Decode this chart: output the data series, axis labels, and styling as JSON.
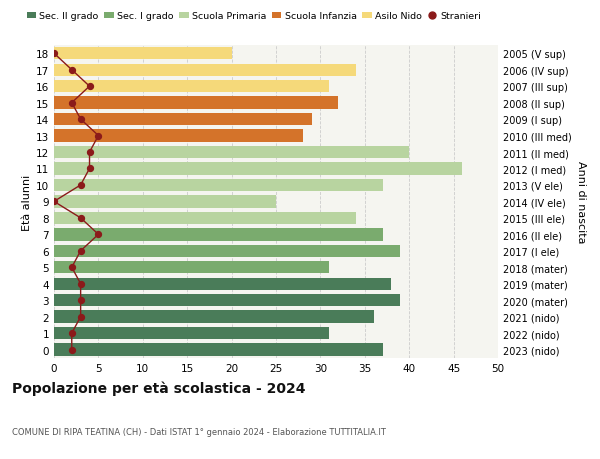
{
  "ages": [
    18,
    17,
    16,
    15,
    14,
    13,
    12,
    11,
    10,
    9,
    8,
    7,
    6,
    5,
    4,
    3,
    2,
    1,
    0
  ],
  "years": [
    "2005 (V sup)",
    "2006 (IV sup)",
    "2007 (III sup)",
    "2008 (II sup)",
    "2009 (I sup)",
    "2010 (III med)",
    "2011 (II med)",
    "2012 (I med)",
    "2013 (V ele)",
    "2014 (IV ele)",
    "2015 (III ele)",
    "2016 (II ele)",
    "2017 (I ele)",
    "2018 (mater)",
    "2019 (mater)",
    "2020 (mater)",
    "2021 (nido)",
    "2022 (nido)",
    "2023 (nido)"
  ],
  "bar_values": [
    37,
    31,
    36,
    39,
    38,
    31,
    39,
    37,
    34,
    25,
    37,
    46,
    40,
    28,
    29,
    32,
    31,
    34,
    20
  ],
  "bar_colors": [
    "#4a7c59",
    "#4a7c59",
    "#4a7c59",
    "#4a7c59",
    "#4a7c59",
    "#7aab6e",
    "#7aab6e",
    "#7aab6e",
    "#b8d4a0",
    "#b8d4a0",
    "#b8d4a0",
    "#b8d4a0",
    "#b8d4a0",
    "#d4732a",
    "#d4732a",
    "#d4732a",
    "#f5d97a",
    "#f5d97a",
    "#f5d97a"
  ],
  "stranieri_values": [
    2,
    2,
    3,
    3,
    3,
    2,
    3,
    5,
    3,
    0,
    3,
    4,
    4,
    5,
    3,
    2,
    4,
    2,
    0
  ],
  "stranieri_color": "#8b1a1a",
  "legend_labels": [
    "Sec. II grado",
    "Sec. I grado",
    "Scuola Primaria",
    "Scuola Infanzia",
    "Asilo Nido",
    "Stranieri"
  ],
  "legend_colors": [
    "#4a7c59",
    "#7aab6e",
    "#b8d4a0",
    "#d4732a",
    "#f5d97a",
    "#8b1a1a"
  ],
  "title": "Popolazione per età scolastica - 2024",
  "subtitle": "COMUNE DI RIPA TEATINA (CH) - Dati ISTAT 1° gennaio 2024 - Elaborazione TUTTITALIA.IT",
  "ylabel_left": "Età alunni",
  "ylabel_right": "Anni di nascita",
  "xlim": [
    0,
    50
  ],
  "xticks": [
    0,
    5,
    10,
    15,
    20,
    25,
    30,
    35,
    40,
    45,
    50
  ],
  "bg_color": "#ffffff",
  "plot_bg_color": "#f5f5f0"
}
